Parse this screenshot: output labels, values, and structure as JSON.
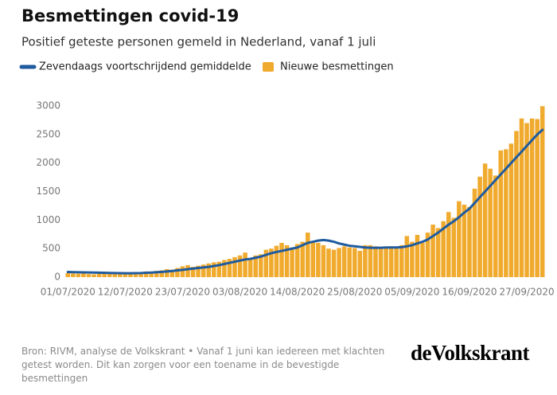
{
  "chart_data": {
    "type": "bar",
    "title": "Besmettingen covid-19",
    "subtitle": "Positief geteste personen gemeld in Nederland, vanaf 1 juli",
    "categories": [
      "01/07/2020",
      null,
      null,
      null,
      null,
      null,
      null,
      null,
      null,
      null,
      null,
      "12/07/2020",
      null,
      null,
      null,
      null,
      null,
      null,
      null,
      null,
      null,
      null,
      "23/07/2020",
      null,
      null,
      null,
      null,
      null,
      null,
      null,
      null,
      null,
      null,
      "03/08/2020",
      null,
      null,
      null,
      null,
      null,
      null,
      null,
      null,
      null,
      null,
      "14/08/2020",
      null,
      null,
      null,
      null,
      null,
      null,
      null,
      null,
      null,
      null,
      "25/08/2020",
      null,
      null,
      null,
      null,
      null,
      null,
      null,
      null,
      null,
      null,
      "05/09/2020",
      null,
      null,
      null,
      null,
      null,
      null,
      null,
      null,
      null,
      null,
      "16/09/2020",
      null,
      null,
      null,
      null,
      null,
      null,
      null,
      null,
      null,
      null,
      "27/09/2020",
      null,
      null,
      null
    ],
    "series": [
      {
        "name": "Zevendaags voortschrijdend gemiddelde",
        "type": "line",
        "color": "#1f5b9e",
        "values": [
          90,
          88,
          86,
          84,
          82,
          80,
          78,
          76,
          74,
          72,
          70,
          68,
          68,
          70,
          72,
          76,
          80,
          86,
          92,
          100,
          108,
          118,
          128,
          140,
          150,
          160,
          170,
          180,
          195,
          210,
          230,
          250,
          270,
          290,
          310,
          320,
          340,
          360,
          390,
          420,
          440,
          460,
          480,
          500,
          520,
          560,
          600,
          620,
          640,
          650,
          640,
          620,
          590,
          570,
          550,
          540,
          530,
          520,
          515,
          515,
          515,
          520,
          520,
          520,
          525,
          540,
          560,
          590,
          620,
          660,
          720,
          780,
          850,
          920,
          980,
          1050,
          1130,
          1200,
          1300,
          1400,
          1500,
          1600,
          1700,
          1800,
          1900,
          2000,
          2100,
          2200,
          2300,
          2400,
          2500,
          2580
        ]
      },
      {
        "name": "Nieuwe besmettingen",
        "type": "bar",
        "color": "#f0aa2d",
        "values": [
          70,
          65,
          60,
          75,
          55,
          50,
          70,
          60,
          80,
          65,
          60,
          55,
          70,
          80,
          90,
          100,
          95,
          110,
          120,
          140,
          130,
          160,
          190,
          210,
          180,
          200,
          220,
          240,
          260,
          270,
          300,
          320,
          350,
          380,
          430,
          330,
          380,
          400,
          480,
          500,
          550,
          600,
          560,
          520,
          580,
          620,
          780,
          620,
          600,
          560,
          500,
          480,
          510,
          540,
          520,
          510,
          460,
          560,
          560,
          540,
          500,
          530,
          540,
          520,
          560,
          720,
          620,
          740,
          600,
          780,
          920,
          860,
          980,
          1140,
          1040,
          1330,
          1270,
          1230,
          1550,
          1760,
          1990,
          1900,
          1780,
          2220,
          2240,
          2340,
          2560,
          2780,
          2700,
          2780,
          2770,
          2995
        ]
      }
    ],
    "ylim": [
      0,
      3000
    ],
    "yticks": [
      0,
      500,
      1000,
      1500,
      2000,
      2500,
      3000
    ],
    "grid": false,
    "source": "Bron: RIVM, analyse de Volkskrant • Vanaf 1 juni kan iedereen met klachten getest worden. Dit kan zorgen voor een toename in de bevestigde besmettingen",
    "logo": "deVolkskrant"
  }
}
